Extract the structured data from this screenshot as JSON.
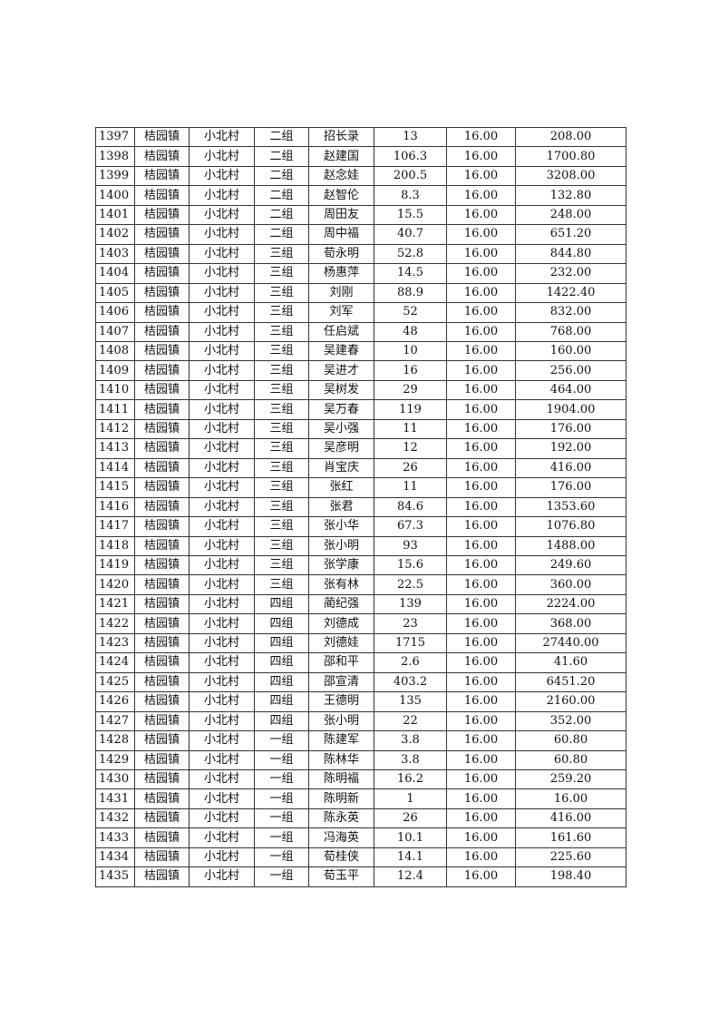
{
  "table": {
    "rows": [
      [
        "1397",
        "桔园镇",
        "小北村",
        "二组",
        "招长录",
        "13",
        "16.00",
        "208.00"
      ],
      [
        "1398",
        "桔园镇",
        "小北村",
        "二组",
        "赵建国",
        "106.3",
        "16.00",
        "1700.80"
      ],
      [
        "1399",
        "桔园镇",
        "小北村",
        "二组",
        "赵念娃",
        "200.5",
        "16.00",
        "3208.00"
      ],
      [
        "1400",
        "桔园镇",
        "小北村",
        "二组",
        "赵智伦",
        "8.3",
        "16.00",
        "132.80"
      ],
      [
        "1401",
        "桔园镇",
        "小北村",
        "二组",
        "周田友",
        "15.5",
        "16.00",
        "248.00"
      ],
      [
        "1402",
        "桔园镇",
        "小北村",
        "二组",
        "周中福",
        "40.7",
        "16.00",
        "651.20"
      ],
      [
        "1403",
        "桔园镇",
        "小北村",
        "三组",
        "荀永明",
        "52.8",
        "16.00",
        "844.80"
      ],
      [
        "1404",
        "桔园镇",
        "小北村",
        "三组",
        "杨惠萍",
        "14.5",
        "16.00",
        "232.00"
      ],
      [
        "1405",
        "桔园镇",
        "小北村",
        "三组",
        "刘刚",
        "88.9",
        "16.00",
        "1422.40"
      ],
      [
        "1406",
        "桔园镇",
        "小北村",
        "三组",
        "刘军",
        "52",
        "16.00",
        "832.00"
      ],
      [
        "1407",
        "桔园镇",
        "小北村",
        "三组",
        "任启斌",
        "48",
        "16.00",
        "768.00"
      ],
      [
        "1408",
        "桔园镇",
        "小北村",
        "三组",
        "吴建春",
        "10",
        "16.00",
        "160.00"
      ],
      [
        "1409",
        "桔园镇",
        "小北村",
        "三组",
        "吴进才",
        "16",
        "16.00",
        "256.00"
      ],
      [
        "1410",
        "桔园镇",
        "小北村",
        "三组",
        "吴树发",
        "29",
        "16.00",
        "464.00"
      ],
      [
        "1411",
        "桔园镇",
        "小北村",
        "三组",
        "吴万春",
        "119",
        "16.00",
        "1904.00"
      ],
      [
        "1412",
        "桔园镇",
        "小北村",
        "三组",
        "吴小强",
        "11",
        "16.00",
        "176.00"
      ],
      [
        "1413",
        "桔园镇",
        "小北村",
        "三组",
        "吴彦明",
        "12",
        "16.00",
        "192.00"
      ],
      [
        "1414",
        "桔园镇",
        "小北村",
        "三组",
        "肖宝庆",
        "26",
        "16.00",
        "416.00"
      ],
      [
        "1415",
        "桔园镇",
        "小北村",
        "三组",
        "张红",
        "11",
        "16.00",
        "176.00"
      ],
      [
        "1416",
        "桔园镇",
        "小北村",
        "三组",
        "张君",
        "84.6",
        "16.00",
        "1353.60"
      ],
      [
        "1417",
        "桔园镇",
        "小北村",
        "三组",
        "张小华",
        "67.3",
        "16.00",
        "1076.80"
      ],
      [
        "1418",
        "桔园镇",
        "小北村",
        "三组",
        "张小明",
        "93",
        "16.00",
        "1488.00"
      ],
      [
        "1419",
        "桔园镇",
        "小北村",
        "三组",
        "张学康",
        "15.6",
        "16.00",
        "249.60"
      ],
      [
        "1420",
        "桔园镇",
        "小北村",
        "三组",
        "张有林",
        "22.5",
        "16.00",
        "360.00"
      ],
      [
        "1421",
        "桔园镇",
        "小北村",
        "四组",
        "蔺纪强",
        "139",
        "16.00",
        "2224.00"
      ],
      [
        "1422",
        "桔园镇",
        "小北村",
        "四组",
        "刘德成",
        "23",
        "16.00",
        "368.00"
      ],
      [
        "1423",
        "桔园镇",
        "小北村",
        "四组",
        "刘德娃",
        "1715",
        "16.00",
        "27440.00"
      ],
      [
        "1424",
        "桔园镇",
        "小北村",
        "四组",
        "邵和平",
        "2.6",
        "16.00",
        "41.60"
      ],
      [
        "1425",
        "桔园镇",
        "小北村",
        "四组",
        "邵宣清",
        "403.2",
        "16.00",
        "6451.20"
      ],
      [
        "1426",
        "桔园镇",
        "小北村",
        "四组",
        "王德明",
        "135",
        "16.00",
        "2160.00"
      ],
      [
        "1427",
        "桔园镇",
        "小北村",
        "四组",
        "张小明",
        "22",
        "16.00",
        "352.00"
      ],
      [
        "1428",
        "桔园镇",
        "小北村",
        "一组",
        "陈建军",
        "3.8",
        "16.00",
        "60.80"
      ],
      [
        "1429",
        "桔园镇",
        "小北村",
        "一组",
        "陈林华",
        "3.8",
        "16.00",
        "60.80"
      ],
      [
        "1430",
        "桔园镇",
        "小北村",
        "一组",
        "陈明福",
        "16.2",
        "16.00",
        "259.20"
      ],
      [
        "1431",
        "桔园镇",
        "小北村",
        "一组",
        "陈明新",
        "1",
        "16.00",
        "16.00"
      ],
      [
        "1432",
        "桔园镇",
        "小北村",
        "一组",
        "陈永英",
        "26",
        "16.00",
        "416.00"
      ],
      [
        "1433",
        "桔园镇",
        "小北村",
        "一组",
        "冯海英",
        "10.1",
        "16.00",
        "161.60"
      ],
      [
        "1434",
        "桔园镇",
        "小北村",
        "一组",
        "荀桂侠",
        "14.1",
        "16.00",
        "225.60"
      ],
      [
        "1435",
        "桔园镇",
        "小北村",
        "一组",
        "荀玉平",
        "12.4",
        "16.00",
        "198.40"
      ]
    ]
  }
}
